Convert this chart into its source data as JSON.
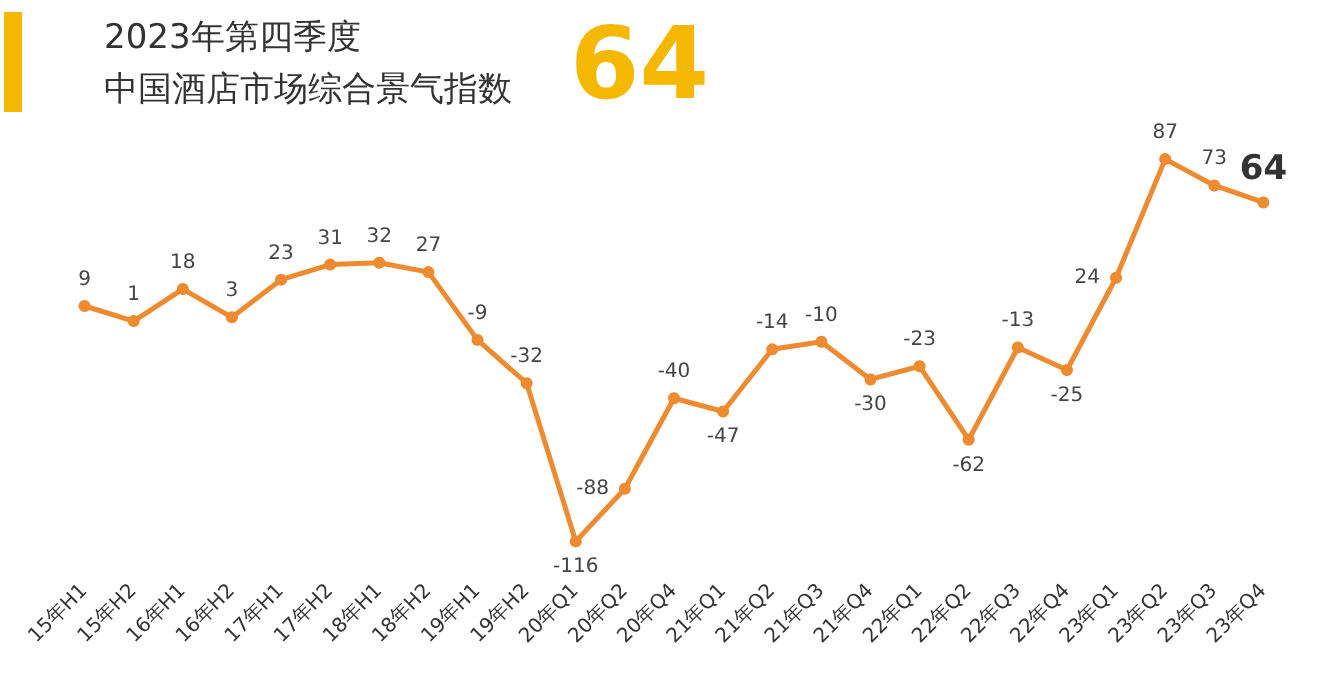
{
  "chart_data": {
    "type": "line",
    "title": "2023年第四季度",
    "subtitle": "中国酒店市场综合景气指数",
    "annotations": [
      "64"
    ],
    "categories": [
      "15年H1",
      "15年H2",
      "16年H1",
      "16年H2",
      "17年H1",
      "17年H2",
      "18年H1",
      "18年H2",
      "19年H1",
      "19年H2",
      "20年Q1",
      "20年Q2",
      "20年Q4",
      "21年Q1",
      "21年Q2",
      "21年Q3",
      "21年Q4",
      "22年Q1",
      "22年Q2",
      "22年Q3",
      "22年Q4",
      "23年Q1",
      "23年Q2",
      "23年Q3",
      "23年Q4"
    ],
    "values": [
      9,
      1,
      18,
      3,
      23,
      31,
      32,
      27,
      -9,
      -32,
      -116,
      -88,
      -40,
      -47,
      -14,
      -10,
      -30,
      -23,
      -62,
      -13,
      -25,
      24,
      87,
      73,
      64
    ],
    "color": "#ee8a2f",
    "data_labels": true,
    "grid": false,
    "marker": "circle",
    "line_style": "solid"
  }
}
